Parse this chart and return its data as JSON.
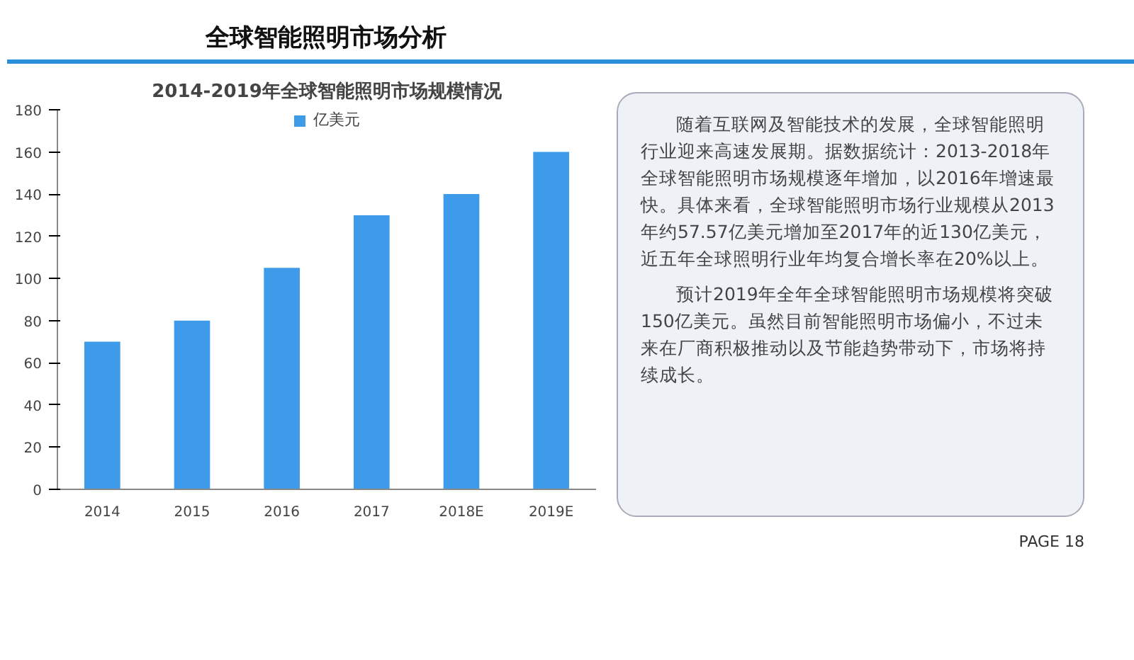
{
  "chart_data": {
    "type": "bar",
    "title": "全球智能照明市场分析",
    "subtitle": "2014-2019年全球智能照明市场规模情况",
    "categories": [
      "2014",
      "2015",
      "2016",
      "2017",
      "2018E",
      "2019E"
    ],
    "series": [
      {
        "name": "亿美元",
        "color": "#3d9be9",
        "values": [
          70,
          80,
          105,
          130,
          140,
          160
        ]
      }
    ],
    "ylim": [
      0,
      180
    ],
    "yticks": [
      0,
      20,
      40,
      60,
      80,
      100,
      120,
      140,
      160,
      180
    ],
    "legend": "top",
    "grid": false,
    "annotations": [
      "随着互联网及智能技术的发展，全球智能照明行业迎来高速发展期。据数据统计：2013-2018年全球智能照明市场规模逐年增加，以2016年增速最快。具体来看，全球智能照明市场行业规模从2013年约57.57亿美元增加至2017年的近130亿美元，近五年全球照明行业年均复合增长率在20%以上。",
      "预计2019年全年全球智能照明市场规模将突破150亿美元。虽然目前智能照明市场偏小，不过未来在厂商积极推动以及节能趋势带动下，市场将持续成长。",
      "PAGE 18"
    ]
  }
}
